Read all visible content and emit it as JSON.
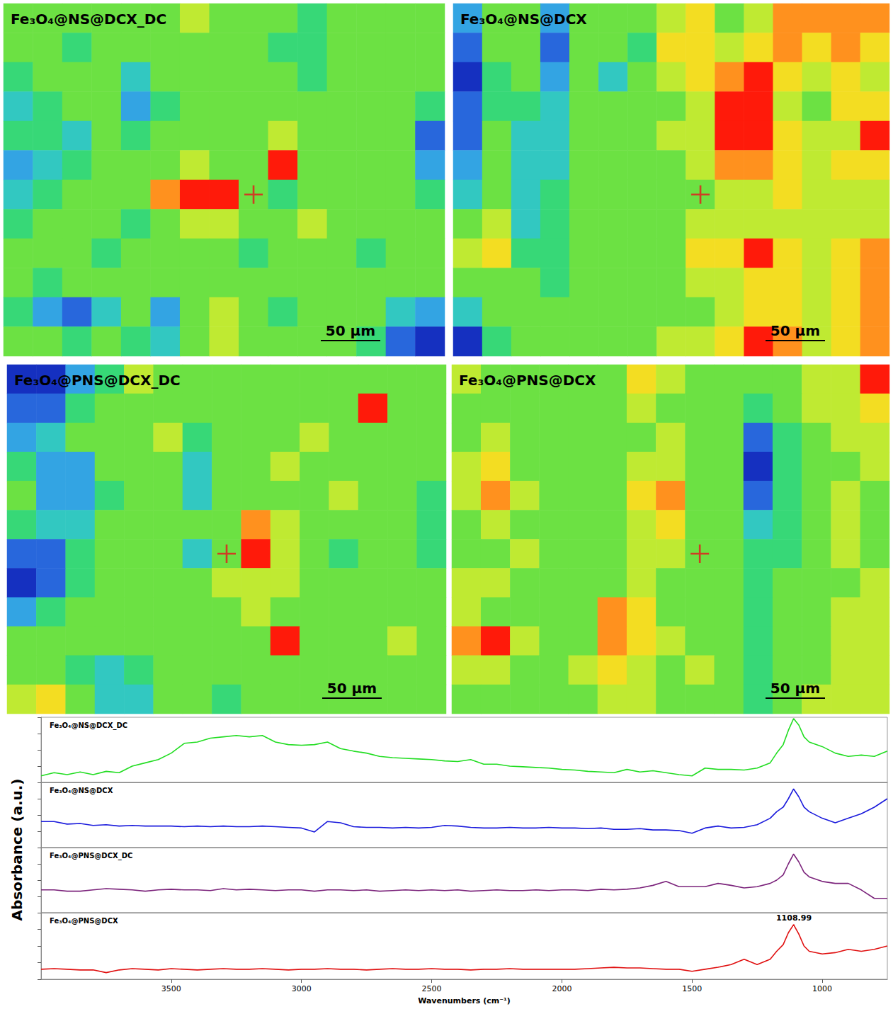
{
  "chart_data": [
    {
      "type": "heatmap",
      "title": "Fe₃O₄@NS@DCX_DC",
      "zlim": [
        0,
        9
      ],
      "tick_labels": false,
      "marker": "cross",
      "cross": [
        8,
        6
      ],
      "scale_bar": "50 µm",
      "cells": [
        [
          5,
          5,
          5,
          5,
          5,
          5,
          6,
          5,
          5,
          5,
          4,
          5,
          5,
          5,
          5
        ],
        [
          5,
          5,
          4,
          5,
          5,
          5,
          5,
          5,
          5,
          4,
          4,
          5,
          5,
          5,
          5
        ],
        [
          4,
          5,
          5,
          5,
          3,
          5,
          5,
          5,
          5,
          5,
          4,
          5,
          5,
          5,
          5
        ],
        [
          3,
          4,
          5,
          5,
          2,
          4,
          5,
          5,
          5,
          5,
          5,
          5,
          5,
          5,
          4
        ],
        [
          4,
          4,
          3,
          5,
          4,
          5,
          5,
          5,
          5,
          6,
          5,
          5,
          5,
          5,
          1
        ],
        [
          2,
          3,
          4,
          5,
          5,
          5,
          6,
          5,
          5,
          9,
          5,
          5,
          5,
          5,
          2
        ],
        [
          3,
          4,
          5,
          5,
          5,
          8,
          9,
          9,
          5,
          4,
          5,
          5,
          5,
          5,
          4
        ],
        [
          4,
          5,
          5,
          5,
          4,
          5,
          6,
          6,
          5,
          5,
          6,
          5,
          5,
          5,
          5
        ],
        [
          5,
          5,
          5,
          4,
          5,
          5,
          5,
          5,
          4,
          5,
          5,
          5,
          4,
          5,
          5
        ],
        [
          5,
          4,
          5,
          5,
          5,
          5,
          5,
          5,
          5,
          5,
          5,
          5,
          5,
          5,
          5
        ],
        [
          4,
          2,
          1,
          3,
          5,
          2,
          5,
          6,
          5,
          4,
          5,
          5,
          5,
          3,
          2
        ],
        [
          5,
          5,
          4,
          5,
          4,
          3,
          5,
          6,
          5,
          5,
          5,
          5,
          4,
          1,
          0
        ]
      ]
    },
    {
      "type": "heatmap",
      "title": "Fe₃O₄@NS@DCX",
      "zlim": [
        0,
        9
      ],
      "tick_labels": false,
      "marker": "cross",
      "cross": [
        8,
        6
      ],
      "scale_bar": "50 µm",
      "cells": [
        [
          2,
          5,
          5,
          2,
          5,
          5,
          5,
          6,
          7,
          5,
          6,
          8,
          8,
          8,
          8
        ],
        [
          1,
          5,
          5,
          1,
          5,
          5,
          4,
          7,
          7,
          6,
          7,
          8,
          7,
          8,
          7
        ],
        [
          0,
          4,
          5,
          2,
          5,
          3,
          5,
          6,
          7,
          8,
          9,
          7,
          6,
          7,
          6
        ],
        [
          1,
          4,
          4,
          3,
          5,
          5,
          5,
          5,
          6,
          9,
          9,
          6,
          5,
          7,
          7
        ],
        [
          1,
          5,
          3,
          3,
          5,
          5,
          5,
          6,
          6,
          9,
          9,
          7,
          6,
          6,
          9
        ],
        [
          2,
          5,
          3,
          3,
          5,
          5,
          5,
          5,
          6,
          8,
          8,
          7,
          6,
          7,
          7
        ],
        [
          3,
          5,
          3,
          4,
          5,
          5,
          5,
          5,
          5,
          6,
          6,
          7,
          6,
          6,
          6
        ],
        [
          5,
          6,
          3,
          4,
          5,
          5,
          5,
          5,
          6,
          6,
          6,
          6,
          6,
          6,
          6
        ],
        [
          6,
          7,
          4,
          4,
          5,
          5,
          5,
          5,
          7,
          7,
          9,
          7,
          6,
          7,
          8
        ],
        [
          5,
          5,
          5,
          4,
          5,
          5,
          5,
          5,
          6,
          6,
          7,
          7,
          6,
          7,
          8
        ],
        [
          3,
          5,
          5,
          5,
          5,
          5,
          5,
          5,
          5,
          6,
          7,
          7,
          6,
          7,
          8
        ],
        [
          0,
          4,
          5,
          5,
          5,
          5,
          5,
          6,
          6,
          7,
          9,
          8,
          6,
          7,
          8
        ]
      ]
    },
    {
      "type": "heatmap",
      "title": "Fe₃O₄@PNS@DCX_DC",
      "zlim": [
        0,
        9
      ],
      "tick_labels": false,
      "marker": "cross",
      "cross": [
        7,
        6
      ],
      "scale_bar": "50 µm",
      "cells": [
        [
          0,
          0,
          2,
          4,
          6,
          5,
          5,
          5,
          5,
          5,
          5,
          5,
          5,
          5,
          5
        ],
        [
          1,
          1,
          4,
          5,
          5,
          5,
          5,
          5,
          5,
          5,
          5,
          5,
          9,
          5,
          5
        ],
        [
          2,
          3,
          5,
          5,
          5,
          6,
          4,
          5,
          5,
          5,
          6,
          5,
          5,
          5,
          5
        ],
        [
          4,
          2,
          2,
          5,
          5,
          5,
          3,
          5,
          5,
          6,
          5,
          5,
          5,
          5,
          5
        ],
        [
          5,
          2,
          2,
          4,
          5,
          5,
          3,
          5,
          5,
          5,
          5,
          6,
          5,
          5,
          4
        ],
        [
          4,
          3,
          3,
          5,
          5,
          5,
          5,
          5,
          8,
          6,
          5,
          5,
          5,
          5,
          4
        ],
        [
          1,
          1,
          4,
          5,
          5,
          5,
          3,
          5,
          9,
          6,
          5,
          4,
          5,
          5,
          4
        ],
        [
          0,
          1,
          4,
          5,
          5,
          5,
          5,
          6,
          6,
          6,
          5,
          5,
          5,
          5,
          5
        ],
        [
          2,
          4,
          5,
          5,
          5,
          5,
          5,
          5,
          6,
          5,
          5,
          5,
          5,
          5,
          5
        ],
        [
          5,
          5,
          5,
          5,
          5,
          5,
          5,
          5,
          5,
          9,
          5,
          5,
          5,
          6,
          5
        ],
        [
          5,
          5,
          4,
          3,
          4,
          5,
          5,
          5,
          5,
          5,
          5,
          5,
          5,
          5,
          5
        ],
        [
          6,
          7,
          5,
          3,
          3,
          5,
          5,
          4,
          5,
          5,
          5,
          5,
          5,
          5,
          5
        ]
      ]
    },
    {
      "type": "heatmap",
      "title": "Fe₃O₄@PNS@DCX",
      "zlim": [
        0,
        9
      ],
      "tick_labels": false,
      "marker": "cross",
      "cross": [
        8,
        6
      ],
      "scale_bar": "50 µm",
      "cells": [
        [
          6,
          5,
          5,
          5,
          5,
          5,
          7,
          6,
          5,
          5,
          5,
          5,
          6,
          6,
          9
        ],
        [
          5,
          5,
          5,
          5,
          5,
          5,
          6,
          5,
          5,
          5,
          4,
          5,
          6,
          6,
          7
        ],
        [
          5,
          6,
          5,
          5,
          5,
          5,
          5,
          6,
          5,
          5,
          1,
          4,
          5,
          6,
          6
        ],
        [
          6,
          7,
          5,
          5,
          5,
          5,
          6,
          6,
          5,
          5,
          0,
          4,
          5,
          5,
          6
        ],
        [
          6,
          8,
          6,
          5,
          5,
          5,
          7,
          8,
          5,
          5,
          1,
          4,
          5,
          6,
          5
        ],
        [
          5,
          6,
          5,
          5,
          5,
          5,
          6,
          7,
          5,
          5,
          3,
          4,
          5,
          6,
          5
        ],
        [
          5,
          5,
          6,
          5,
          5,
          5,
          6,
          6,
          5,
          5,
          4,
          4,
          5,
          6,
          5
        ],
        [
          6,
          6,
          5,
          5,
          5,
          5,
          6,
          5,
          5,
          5,
          4,
          5,
          5,
          5,
          6
        ],
        [
          6,
          5,
          5,
          5,
          5,
          8,
          7,
          5,
          5,
          5,
          4,
          5,
          5,
          6,
          6
        ],
        [
          8,
          9,
          6,
          5,
          5,
          8,
          7,
          6,
          5,
          5,
          4,
          5,
          5,
          6,
          6
        ],
        [
          6,
          6,
          5,
          5,
          6,
          7,
          6,
          5,
          6,
          5,
          4,
          5,
          5,
          6,
          6
        ],
        [
          5,
          5,
          5,
          5,
          5,
          6,
          6,
          5,
          5,
          5,
          4,
          5,
          6,
          6,
          6
        ]
      ]
    },
    {
      "type": "line",
      "x_label": "Wavenumbers (cm⁻¹)",
      "y_label": "Absorbance (a.u.)",
      "tick_labels": "x",
      "grid": false,
      "xlim": [
        4000,
        750
      ],
      "xticks": [
        3500,
        3000,
        2500,
        2000,
        1500,
        1000
      ],
      "ylim": [
        0,
        1
      ],
      "yticks": [
        0,
        0.25,
        0.5,
        0.75,
        1
      ],
      "x": [
        4000,
        3950,
        3900,
        3850,
        3800,
        3750,
        3700,
        3650,
        3600,
        3550,
        3500,
        3450,
        3400,
        3350,
        3300,
        3250,
        3200,
        3150,
        3100,
        3050,
        3000,
        2950,
        2900,
        2850,
        2800,
        2750,
        2700,
        2650,
        2600,
        2550,
        2500,
        2450,
        2400,
        2350,
        2300,
        2250,
        2200,
        2150,
        2100,
        2050,
        2000,
        1950,
        1900,
        1850,
        1800,
        1750,
        1700,
        1650,
        1600,
        1550,
        1500,
        1450,
        1400,
        1350,
        1300,
        1250,
        1200,
        1175,
        1150,
        1130,
        1110,
        1090,
        1070,
        1050,
        1000,
        950,
        900,
        850,
        800,
        750
      ],
      "series": [
        {
          "name": "Fe₃O₄@NS@DCX_DC",
          "color": "#22dd22",
          "values": [
            0.1,
            0.15,
            0.12,
            0.16,
            0.12,
            0.17,
            0.15,
            0.25,
            0.3,
            0.35,
            0.45,
            0.6,
            0.62,
            0.68,
            0.7,
            0.72,
            0.7,
            0.72,
            0.62,
            0.58,
            0.57,
            0.58,
            0.62,
            0.52,
            0.48,
            0.45,
            0.4,
            0.38,
            0.37,
            0.36,
            0.35,
            0.33,
            0.32,
            0.35,
            0.28,
            0.28,
            0.25,
            0.24,
            0.23,
            0.22,
            0.2,
            0.19,
            0.17,
            0.16,
            0.15,
            0.2,
            0.16,
            0.18,
            0.15,
            0.12,
            0.1,
            0.22,
            0.2,
            0.2,
            0.19,
            0.22,
            0.3,
            0.45,
            0.58,
            0.8,
            0.98,
            0.88,
            0.7,
            0.62,
            0.55,
            0.45,
            0.4,
            0.42,
            0.4,
            0.48
          ]
        },
        {
          "name": "Fe₃O₄@NS@DCX",
          "color": "#1a1adc",
          "values": [
            0.4,
            0.4,
            0.36,
            0.37,
            0.34,
            0.35,
            0.33,
            0.34,
            0.33,
            0.33,
            0.33,
            0.32,
            0.33,
            0.32,
            0.33,
            0.32,
            0.32,
            0.33,
            0.32,
            0.31,
            0.3,
            0.24,
            0.4,
            0.38,
            0.32,
            0.31,
            0.31,
            0.3,
            0.31,
            0.3,
            0.31,
            0.34,
            0.33,
            0.31,
            0.3,
            0.3,
            0.31,
            0.3,
            0.3,
            0.31,
            0.3,
            0.3,
            0.29,
            0.3,
            0.28,
            0.28,
            0.29,
            0.27,
            0.27,
            0.26,
            0.22,
            0.3,
            0.33,
            0.3,
            0.31,
            0.35,
            0.45,
            0.55,
            0.62,
            0.75,
            0.9,
            0.78,
            0.62,
            0.55,
            0.45,
            0.38,
            0.45,
            0.52,
            0.62,
            0.75
          ]
        },
        {
          "name": "Fe₃O₄@PNS@DCX_DC",
          "color": "#7b237b",
          "values": [
            0.35,
            0.35,
            0.33,
            0.33,
            0.35,
            0.37,
            0.36,
            0.35,
            0.33,
            0.35,
            0.36,
            0.35,
            0.35,
            0.34,
            0.37,
            0.35,
            0.36,
            0.35,
            0.34,
            0.35,
            0.35,
            0.33,
            0.35,
            0.35,
            0.34,
            0.35,
            0.33,
            0.34,
            0.35,
            0.34,
            0.35,
            0.34,
            0.35,
            0.33,
            0.34,
            0.35,
            0.34,
            0.34,
            0.35,
            0.34,
            0.35,
            0.35,
            0.34,
            0.36,
            0.35,
            0.36,
            0.38,
            0.42,
            0.48,
            0.4,
            0.4,
            0.4,
            0.45,
            0.42,
            0.38,
            0.4,
            0.45,
            0.5,
            0.58,
            0.75,
            0.9,
            0.78,
            0.62,
            0.55,
            0.48,
            0.45,
            0.45,
            0.35,
            0.22,
            0.22
          ]
        },
        {
          "name": "Fe₃O₄@PNS@DCX",
          "color": "#e01010",
          "values": [
            0.15,
            0.16,
            0.15,
            0.14,
            0.14,
            0.1,
            0.14,
            0.16,
            0.15,
            0.14,
            0.16,
            0.15,
            0.14,
            0.15,
            0.16,
            0.15,
            0.15,
            0.16,
            0.15,
            0.14,
            0.15,
            0.15,
            0.16,
            0.15,
            0.15,
            0.14,
            0.15,
            0.16,
            0.15,
            0.15,
            0.16,
            0.15,
            0.15,
            0.14,
            0.15,
            0.15,
            0.16,
            0.15,
            0.15,
            0.15,
            0.15,
            0.15,
            0.16,
            0.17,
            0.18,
            0.17,
            0.17,
            0.16,
            0.15,
            0.15,
            0.12,
            0.15,
            0.18,
            0.22,
            0.3,
            0.22,
            0.3,
            0.42,
            0.52,
            0.7,
            0.82,
            0.68,
            0.5,
            0.42,
            0.38,
            0.4,
            0.45,
            0.42,
            0.45,
            0.5
          ]
        }
      ],
      "annotations": [
        {
          "series": "Fe₃O₄@PNS@DCX",
          "x": 1108.99,
          "y": 0.82,
          "text": "1108.99"
        }
      ]
    }
  ]
}
